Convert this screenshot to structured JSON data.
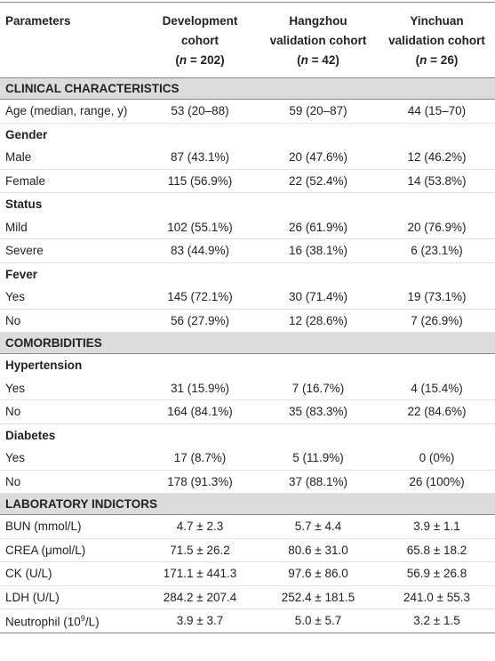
{
  "header": {
    "parameters": "Parameters",
    "cohorts": [
      {
        "lines": [
          "Development",
          "cohort"
        ],
        "sample": [
          "(",
          "n",
          " = 202)"
        ]
      },
      {
        "lines": [
          "Hangzhou",
          "validation cohort"
        ],
        "sample": [
          "(",
          "n",
          " = 42)"
        ]
      },
      {
        "lines": [
          "Yinchuan",
          "validation cohort"
        ],
        "sample": [
          "(",
          "n",
          " = 26)"
        ]
      }
    ]
  },
  "sections": [
    {
      "title": "CLINICAL CHARACTERISTICS",
      "rows": [
        {
          "label": "Age (median, range, y)",
          "cells": [
            "53 (20–88)",
            "59 (20–87)",
            "44 (15–70)"
          ]
        },
        {
          "group": "Gender"
        },
        {
          "label": "Male",
          "cells": [
            "87 (43.1%)",
            "20 (47.6%)",
            "12 (46.2%)"
          ]
        },
        {
          "label": "Female",
          "cells": [
            "115 (56.9%)",
            "22 (52.4%)",
            "14 (53.8%)"
          ]
        },
        {
          "group": "Status"
        },
        {
          "label": "Mild",
          "cells": [
            "102 (55.1%)",
            "26 (61.9%)",
            "20 (76.9%)"
          ]
        },
        {
          "label": "Severe",
          "cells": [
            "83 (44.9%)",
            "16 (38.1%)",
            "6 (23.1%)"
          ]
        },
        {
          "group": "Fever"
        },
        {
          "label": "Yes",
          "cells": [
            "145 (72.1%)",
            "30 (71.4%)",
            "19 (73.1%)"
          ]
        },
        {
          "label": "No",
          "cells": [
            "56 (27.9%)",
            "12 (28.6%)",
            "7 (26.9%)"
          ]
        }
      ]
    },
    {
      "title": "COMORBIDITIES",
      "rows": [
        {
          "group": "Hypertension"
        },
        {
          "label": "Yes",
          "cells": [
            "31 (15.9%)",
            "7 (16.7%)",
            "4 (15.4%)"
          ]
        },
        {
          "label": "No",
          "cells": [
            "164 (84.1%)",
            "35 (83.3%)",
            "22 (84.6%)"
          ]
        },
        {
          "group": "Diabetes"
        },
        {
          "label": "Yes",
          "cells": [
            "17 (8.7%)",
            "5 (11.9%)",
            "0 (0%)"
          ]
        },
        {
          "label": "No",
          "cells": [
            "178 (91.3%)",
            "37 (88.1%)",
            "26 (100%)"
          ]
        }
      ]
    },
    {
      "title": "LABORATORY INDICTORS",
      "rows": [
        {
          "label": "BUN (mmol/L)",
          "cells": [
            "4.7 ± 2.3",
            "5.7 ± 4.4",
            "3.9 ± 1.1"
          ]
        },
        {
          "label": "CREA (μmol/L)",
          "cells": [
            "71.5 ± 26.2",
            "80.6 ± 31.0",
            "65.8 ± 18.2"
          ]
        },
        {
          "label": "CK (U/L)",
          "cells": [
            "171.1 ± 441.3",
            "97.6 ± 86.0",
            "56.9 ± 26.8"
          ]
        },
        {
          "label": "LDH (U/L)",
          "cells": [
            "284.2 ± 207.4",
            "252.4 ± 181.5",
            "241.0 ± 55.3"
          ]
        },
        {
          "label": [
            "Neutrophil (10",
            "9",
            "/L)"
          ],
          "cells": [
            "3.9 ± 3.7",
            "5.0 ± 5.7",
            "3.2 ± 1.5"
          ]
        }
      ]
    }
  ]
}
